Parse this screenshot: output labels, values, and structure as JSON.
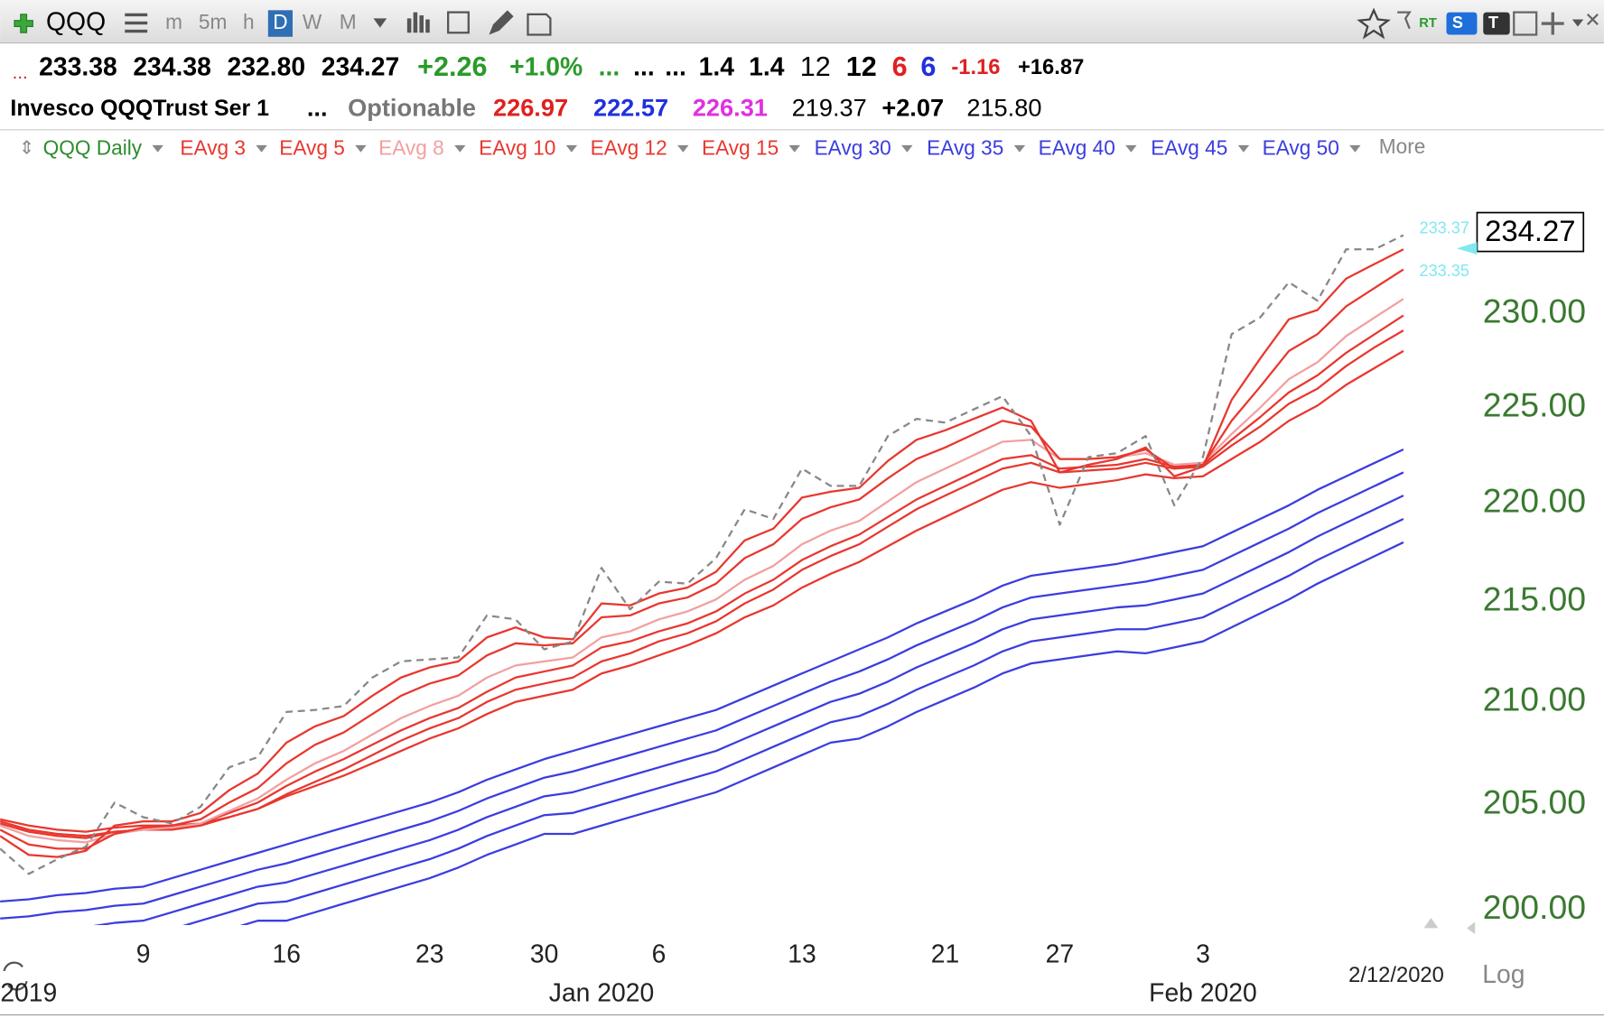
{
  "toolbar": {
    "symbol": "QQQ",
    "intervals": [
      "m",
      "5m",
      "h",
      "D",
      "W",
      "M"
    ],
    "active": "D",
    "badges": [
      "RT",
      "S",
      "T"
    ]
  },
  "quote_row": [
    {
      "text": "...",
      "color": "#d02020"
    },
    {
      "text": "233.38",
      "color": "#000000"
    },
    {
      "text": "234.38",
      "color": "#000000"
    },
    {
      "text": "232.80",
      "color": "#000000"
    },
    {
      "text": "234.27",
      "color": "#000000"
    },
    {
      "text": "+2.26",
      "color": "#2a9a2a"
    },
    {
      "text": "+1.0%",
      "color": "#2a9a2a"
    },
    {
      "text": "...",
      "color": "#2a9a2a"
    },
    {
      "text": "...",
      "color": "#000000"
    },
    {
      "text": "...",
      "color": "#000000"
    },
    {
      "text": "1.4",
      "color": "#000000"
    },
    {
      "text": "1.4",
      "color": "#000000"
    },
    {
      "text": "12",
      "color": "#000000"
    },
    {
      "text": "12",
      "color": "#000000"
    },
    {
      "text": "6",
      "color": "#e02020"
    },
    {
      "text": "6",
      "color": "#2030e0"
    },
    {
      "text": "-1.16",
      "color": "#e02020"
    },
    {
      "text": "+16.87",
      "color": "#000000"
    }
  ],
  "info_row": [
    {
      "text": "Invesco QQQTrust Ser 1",
      "color": "#000000"
    },
    {
      "text": "...",
      "color": "#000000"
    },
    {
      "text": "Optionable",
      "color": "#777777"
    },
    {
      "text": "226.97",
      "color": "#e02020"
    },
    {
      "text": "222.57",
      "color": "#2030e0"
    },
    {
      "text": "226.31",
      "color": "#e030e0"
    },
    {
      "text": "219.37",
      "color": "#000000"
    },
    {
      "text": "+2.07",
      "color": "#000000"
    },
    {
      "text": "215.80",
      "color": "#000000"
    }
  ],
  "price_tags": [
    "233.37",
    "233.35"
  ],
  "chart_data": {
    "type": "line",
    "log_scale": true,
    "grid": false,
    "scale_label": "Log",
    "date_stamp": "2/12/2020",
    "legend_more": "More",
    "categories": [
      null,
      null,
      null,
      null,
      null,
      "9",
      null,
      null,
      null,
      null,
      "16",
      null,
      null,
      null,
      null,
      "23",
      null,
      null,
      null,
      "30",
      null,
      null,
      null,
      "6",
      null,
      null,
      null,
      null,
      "13",
      null,
      null,
      null,
      null,
      "21",
      null,
      null,
      null,
      "27",
      null,
      null,
      null,
      null,
      "3",
      null,
      null,
      null,
      null,
      null,
      null,
      null
    ],
    "category_groups": [
      null,
      "2019",
      null,
      null,
      null,
      null,
      null,
      null,
      null,
      null,
      null,
      null,
      null,
      null,
      null,
      null,
      null,
      null,
      null,
      null,
      null,
      "Jan 2020",
      null,
      null,
      null,
      null,
      null,
      null,
      null,
      null,
      null,
      null,
      null,
      null,
      null,
      null,
      null,
      null,
      null,
      null,
      null,
      null,
      "Feb 2020",
      null,
      null,
      null,
      null,
      null,
      null,
      null
    ],
    "ylim": [
      199.3,
      237.1
    ],
    "yticks": [
      {
        "value": 200,
        "label": "200.00"
      },
      {
        "value": 205,
        "label": "205.00"
      },
      {
        "value": 210,
        "label": "210.00"
      },
      {
        "value": 215,
        "label": "215.00"
      },
      {
        "value": 220,
        "label": "220.00"
      },
      {
        "value": 225,
        "label": "225.00"
      },
      {
        "value": 230,
        "label": "230.00"
      }
    ],
    "series": [
      {
        "name": "QQQ Daily",
        "color": "#888888",
        "legend_color": "#2e8b2e",
        "dashed": true,
        "values": [
          202.9,
          201.7,
          202.4,
          203.0,
          205.1,
          204.4,
          204.1,
          204.9,
          206.8,
          207.3,
          209.5,
          209.6,
          209.8,
          211.2,
          212.0,
          212.1,
          212.2,
          214.3,
          214.1,
          212.6,
          213.0,
          216.7,
          214.6,
          216.0,
          215.9,
          217.2,
          219.7,
          219.2,
          221.8,
          220.9,
          220.9,
          223.5,
          224.4,
          224.2,
          224.9,
          225.6,
          223.5,
          218.9,
          222.4,
          222.6,
          223.5,
          219.9,
          222.4,
          228.9,
          229.8,
          231.7,
          230.7,
          233.5,
          233.5,
          234.27
        ]
      },
      {
        "name": "EAvg 3",
        "color": "#e8372f",
        "values": [
          203.5,
          202.6,
          202.5,
          202.8,
          204.0,
          204.2,
          204.2,
          204.6,
          205.7,
          206.5,
          208.0,
          208.8,
          209.3,
          210.3,
          211.2,
          211.7,
          212.0,
          213.2,
          213.7,
          213.2,
          213.1,
          214.9,
          214.8,
          215.4,
          215.7,
          216.5,
          218.1,
          218.7,
          220.3,
          220.6,
          220.8,
          222.2,
          223.3,
          223.8,
          224.4,
          225.0,
          224.3,
          221.6,
          222.0,
          222.3,
          222.9,
          221.4,
          221.9,
          225.4,
          227.6,
          229.7,
          230.2,
          231.9,
          232.7,
          233.5
        ]
      },
      {
        "name": "EAvg 5",
        "color": "#e8372f",
        "values": [
          203.8,
          203.1,
          202.9,
          202.9,
          203.6,
          203.9,
          204.0,
          204.3,
          205.1,
          205.8,
          207.0,
          207.9,
          208.5,
          209.4,
          210.3,
          210.9,
          211.3,
          212.3,
          212.9,
          212.8,
          212.9,
          214.2,
          214.3,
          214.9,
          215.2,
          215.9,
          217.2,
          217.9,
          219.2,
          219.8,
          220.2,
          221.3,
          222.3,
          222.9,
          223.6,
          224.3,
          224.0,
          222.3,
          222.3,
          222.4,
          222.8,
          221.8,
          222.0,
          224.3,
          226.1,
          228.0,
          228.9,
          230.4,
          231.4,
          232.4
        ]
      },
      {
        "name": "EAvg 8",
        "color": "#f2a0a0",
        "values": [
          204.0,
          203.5,
          203.3,
          203.2,
          203.6,
          203.8,
          203.9,
          204.1,
          204.7,
          205.3,
          206.2,
          207.0,
          207.6,
          208.4,
          209.2,
          209.8,
          210.3,
          211.2,
          211.8,
          212.0,
          212.2,
          213.2,
          213.5,
          214.1,
          214.5,
          215.1,
          216.1,
          216.8,
          217.9,
          218.6,
          219.1,
          220.1,
          221.1,
          221.8,
          222.5,
          223.2,
          223.3,
          222.3,
          222.3,
          222.4,
          222.6,
          222.0,
          222.1,
          223.6,
          225.0,
          226.5,
          227.4,
          228.8,
          229.8,
          230.8
        ]
      },
      {
        "name": "EAvg 10",
        "color": "#e8372f",
        "values": [
          204.1,
          203.7,
          203.5,
          203.4,
          203.7,
          203.8,
          203.9,
          204.1,
          204.6,
          205.1,
          205.9,
          206.6,
          207.2,
          207.9,
          208.6,
          209.2,
          209.7,
          210.5,
          211.2,
          211.5,
          211.8,
          212.7,
          213.0,
          213.5,
          213.9,
          214.5,
          215.4,
          216.1,
          217.1,
          217.8,
          218.4,
          219.3,
          220.2,
          220.9,
          221.6,
          222.3,
          222.5,
          221.8,
          221.9,
          222.0,
          222.3,
          221.9,
          222.0,
          223.3,
          224.5,
          225.8,
          226.7,
          227.9,
          228.9,
          229.9
        ]
      },
      {
        "name": "EAvg 12",
        "color": "#e8372f",
        "values": [
          204.2,
          203.8,
          203.6,
          203.5,
          203.7,
          203.8,
          203.8,
          204.0,
          204.4,
          204.8,
          205.5,
          206.1,
          206.7,
          207.4,
          208.1,
          208.7,
          209.2,
          210.0,
          210.6,
          210.9,
          211.2,
          212.0,
          212.4,
          213.0,
          213.4,
          214.0,
          214.9,
          215.6,
          216.6,
          217.3,
          217.9,
          218.8,
          219.7,
          220.4,
          221.1,
          221.8,
          222.1,
          221.6,
          221.7,
          221.8,
          222.1,
          221.8,
          221.9,
          223.0,
          224.0,
          225.2,
          226.0,
          227.2,
          228.2,
          229.1
        ]
      },
      {
        "name": "EAvg 15",
        "color": "#e8372f",
        "values": [
          204.3,
          204.0,
          203.8,
          203.7,
          203.9,
          204.0,
          204.0,
          204.1,
          204.4,
          204.8,
          205.4,
          205.9,
          206.4,
          207.0,
          207.6,
          208.2,
          208.7,
          209.4,
          210.0,
          210.3,
          210.6,
          211.4,
          211.8,
          212.3,
          212.8,
          213.4,
          214.2,
          214.8,
          215.7,
          216.4,
          217.0,
          217.8,
          218.6,
          219.3,
          220.0,
          220.7,
          221.1,
          220.8,
          221.0,
          221.2,
          221.5,
          221.3,
          221.4,
          222.3,
          223.2,
          224.3,
          225.1,
          226.2,
          227.1,
          228.0
        ]
      },
      {
        "name": "EAvg 30",
        "color": "#3c3ce0",
        "values": [
          200.4,
          200.5,
          200.7,
          200.8,
          201.0,
          201.1,
          201.5,
          201.9,
          202.3,
          202.7,
          203.1,
          203.5,
          203.9,
          204.3,
          204.7,
          205.1,
          205.6,
          206.2,
          206.7,
          207.2,
          207.6,
          208.0,
          208.4,
          208.8,
          209.2,
          209.6,
          210.2,
          210.8,
          211.4,
          212.0,
          212.6,
          213.2,
          213.9,
          214.5,
          215.1,
          215.8,
          216.3,
          216.5,
          216.7,
          216.9,
          217.2,
          217.5,
          217.8,
          218.5,
          219.2,
          219.9,
          220.7,
          221.4,
          222.1,
          222.8
        ]
      },
      {
        "name": "EAvg 35",
        "color": "#3c3ce0",
        "values": [
          199.6,
          199.7,
          199.9,
          200.0,
          200.2,
          200.3,
          200.7,
          201.1,
          201.5,
          201.9,
          202.2,
          202.6,
          203.0,
          203.4,
          203.8,
          204.2,
          204.7,
          205.3,
          205.8,
          206.3,
          206.6,
          207.0,
          207.4,
          207.8,
          208.2,
          208.6,
          209.2,
          209.8,
          210.4,
          211.0,
          211.5,
          212.1,
          212.8,
          213.4,
          214.0,
          214.7,
          215.2,
          215.4,
          215.6,
          215.8,
          216.0,
          216.3,
          216.6,
          217.3,
          218.0,
          218.7,
          219.5,
          220.2,
          220.9,
          221.6
        ]
      },
      {
        "name": "EAvg 40",
        "color": "#3c3ce0",
        "values": [
          198.8,
          198.9,
          199.1,
          199.2,
          199.4,
          199.5,
          199.9,
          200.3,
          200.7,
          201.1,
          201.3,
          201.7,
          202.1,
          202.5,
          202.9,
          203.3,
          203.8,
          204.4,
          204.9,
          205.4,
          205.6,
          206.0,
          206.4,
          206.8,
          207.2,
          207.6,
          208.2,
          208.8,
          209.4,
          210.0,
          210.4,
          211.0,
          211.7,
          212.3,
          212.9,
          213.6,
          214.1,
          214.3,
          214.5,
          214.7,
          214.8,
          215.1,
          215.4,
          216.1,
          216.8,
          217.5,
          218.3,
          219.0,
          219.7,
          220.4
        ]
      },
      {
        "name": "EAvg 45",
        "color": "#3c3ce0",
        "values": [
          198.0,
          198.1,
          198.3,
          198.4,
          198.6,
          198.7,
          199.1,
          199.5,
          199.9,
          200.3,
          200.4,
          200.8,
          201.2,
          201.6,
          202.0,
          202.4,
          202.9,
          203.5,
          204.0,
          204.5,
          204.6,
          205.0,
          205.4,
          205.8,
          206.2,
          206.6,
          207.2,
          207.8,
          208.4,
          209.0,
          209.3,
          209.9,
          210.6,
          211.2,
          211.8,
          212.5,
          213.0,
          213.2,
          213.4,
          213.6,
          213.6,
          213.9,
          214.2,
          214.9,
          215.6,
          216.3,
          217.1,
          217.8,
          218.5,
          219.2
        ]
      },
      {
        "name": "EAvg 50",
        "color": "#3c3ce0",
        "values": [
          197.2,
          197.3,
          197.5,
          197.6,
          197.8,
          197.9,
          198.3,
          198.7,
          199.1,
          199.5,
          199.5,
          199.9,
          200.3,
          200.7,
          201.1,
          201.5,
          202.0,
          202.6,
          203.1,
          203.6,
          203.6,
          204.0,
          204.4,
          204.8,
          205.2,
          205.6,
          206.2,
          206.8,
          207.4,
          208.0,
          208.2,
          208.8,
          209.5,
          210.1,
          210.7,
          211.4,
          211.9,
          212.1,
          212.3,
          212.5,
          212.4,
          212.7,
          213.0,
          213.7,
          214.4,
          215.1,
          215.9,
          216.6,
          217.3,
          218.0
        ]
      }
    ]
  }
}
